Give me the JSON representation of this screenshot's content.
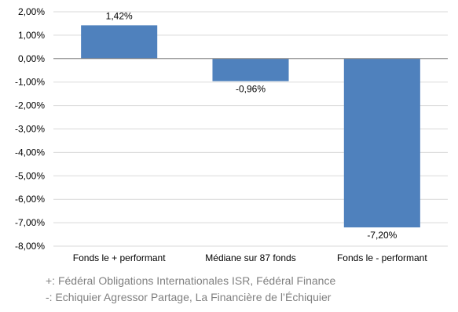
{
  "chart_data": {
    "type": "bar",
    "categories": [
      "Fonds le + performant",
      "Médiane sur 87 fonds",
      "Fonds le - performant"
    ],
    "values": [
      1.42,
      -0.96,
      -7.2
    ],
    "data_labels": [
      "1,42%",
      "-0,96%",
      "-7,20%"
    ],
    "ylim": [
      -8,
      2
    ],
    "yticks": [
      "2,00%",
      "1,00%",
      "0,00%",
      "-1,00%",
      "-2,00%",
      "-3,00%",
      "-4,00%",
      "-5,00%",
      "-6,00%",
      "-7,00%",
      "-8,00%"
    ],
    "title": "",
    "xlabel": "",
    "ylabel": "",
    "grid": true,
    "bar_color": "#4f81bd",
    "grid_color": "#d9d9d9"
  },
  "notes": {
    "best": "+: Fédéral Obligations Internationales ISR, Fédéral Finance",
    "worst": "-:  Echiquier Agressor Partage, La Financière de l’Échiquier"
  }
}
